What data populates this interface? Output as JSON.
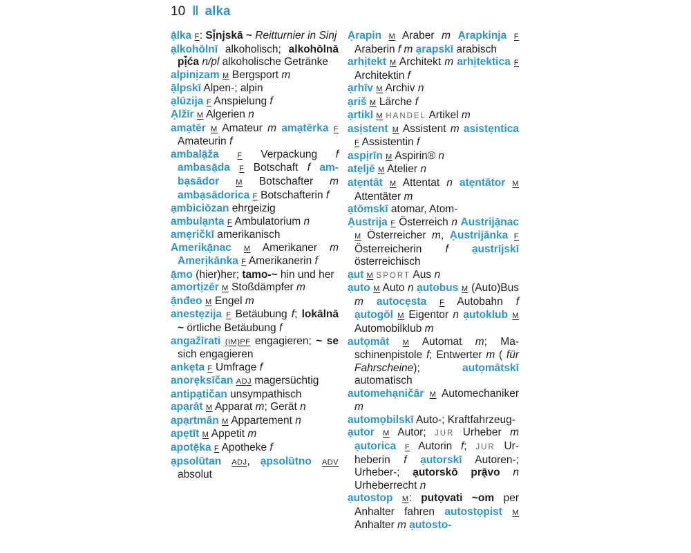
{
  "header": {
    "page_number": "10",
    "divider": "‖",
    "guide_word": "alka"
  },
  "accent_color": "#2d95c8",
  "columns": {
    "left": [
      [
        [
          "hw",
          "ạ̄lka "
        ],
        [
          "g",
          "F"
        ],
        [
          "t",
          ": "
        ],
        [
          "bd",
          "Sị̄njskā ~"
        ],
        [
          "t",
          " "
        ],
        [
          "it",
          "Reitturnier in Sinj"
        ]
      ],
      [
        [
          "hw",
          "ạlkohōlnī"
        ],
        [
          "t",
          " alkoholisch; "
        ],
        [
          "bd",
          "alko­hōlnā pị̄ća "
        ],
        [
          "it",
          "n/pl"
        ],
        [
          "t",
          " alkoholische Getränke"
        ]
      ],
      [
        [
          "hw",
          "alpinịzam "
        ],
        [
          "g",
          "M"
        ],
        [
          "t",
          " Bergsport "
        ],
        [
          "it",
          "m"
        ]
      ],
      [
        [
          "hw",
          "ạ̄lpskī"
        ],
        [
          "t",
          " Alpen-; alpin"
        ]
      ],
      [
        [
          "hw",
          "ạlūzija "
        ],
        [
          "g",
          "F"
        ],
        [
          "t",
          " Anspielung "
        ],
        [
          "it",
          "f"
        ]
      ],
      [
        [
          "hw",
          "Ạlžīr "
        ],
        [
          "g",
          "M"
        ],
        [
          "t",
          " Algerien "
        ],
        [
          "it",
          "n"
        ]
      ],
      [
        [
          "hw",
          "amạtēr "
        ],
        [
          "g",
          "M"
        ],
        [
          "t",
          " Amateur "
        ],
        [
          "it",
          "m"
        ],
        [
          "t",
          " "
        ],
        [
          "hw",
          "amạ­tērka "
        ],
        [
          "g",
          "F"
        ],
        [
          "t",
          " Amateurin "
        ],
        [
          "it",
          "f"
        ]
      ],
      [
        [
          "hw",
          "ambalạ̄ža "
        ],
        [
          "g",
          "F"
        ],
        [
          "t",
          " Verpackung "
        ],
        [
          "it",
          "f"
        ],
        [
          "t",
          " "
        ],
        [
          "hw",
          "ambasạ̄da "
        ],
        [
          "g",
          "F"
        ],
        [
          "t",
          " Botschaft "
        ],
        [
          "it",
          "f"
        ],
        [
          "t",
          " "
        ],
        [
          "hw",
          "am­bạsādor "
        ],
        [
          "g",
          "M"
        ],
        [
          "t",
          " Botschafter "
        ],
        [
          "it",
          "m"
        ],
        [
          "t",
          " "
        ],
        [
          "hw",
          "ambạsādorica "
        ],
        [
          "g",
          "F"
        ],
        [
          "t",
          " Botschafte­rin "
        ],
        [
          "it",
          "f"
        ]
      ],
      [
        [
          "hw",
          "ạmbiciōzan"
        ],
        [
          "t",
          " ehrgeizig"
        ]
      ],
      [
        [
          "hw",
          "ambulạnta "
        ],
        [
          "g",
          "F"
        ],
        [
          "t",
          " Ambulatorium "
        ],
        [
          "it",
          "n"
        ]
      ],
      [
        [
          "hw",
          "amẹričkī"
        ],
        [
          "t",
          " amerikanisch"
        ]
      ],
      [
        [
          "hw",
          "Amerikạ̄nac "
        ],
        [
          "g",
          "M"
        ],
        [
          "t",
          " Amerikaner "
        ],
        [
          "it",
          "m"
        ],
        [
          "t",
          " "
        ],
        [
          "hw",
          "Amerịkānka "
        ],
        [
          "g",
          "F"
        ],
        [
          "t",
          " Amerikane­rin "
        ],
        [
          "it",
          "f"
        ]
      ],
      [
        [
          "hw",
          "ạ̄mo"
        ],
        [
          "t",
          " (hier)her; "
        ],
        [
          "bd",
          "tamo-~"
        ],
        [
          "t",
          " hin und her"
        ]
      ],
      [
        [
          "hw",
          "amortịzēr "
        ],
        [
          "g",
          "M"
        ],
        [
          "t",
          " Stoßdämpfer "
        ],
        [
          "it",
          "m"
        ]
      ],
      [
        [
          "hw",
          "ạ̄nđeo "
        ],
        [
          "g",
          "M"
        ],
        [
          "t",
          " Engel "
        ],
        [
          "it",
          "m"
        ]
      ],
      [
        [
          "hw",
          "anestẹzija "
        ],
        [
          "g",
          "F"
        ],
        [
          "t",
          " Betäubung "
        ],
        [
          "it",
          "f"
        ],
        [
          "t",
          "; "
        ],
        [
          "bd",
          "lo­kālnā ~"
        ],
        [
          "t",
          " örtliche Betäubung "
        ],
        [
          "it",
          "f"
        ]
      ],
      [
        [
          "hw",
          "angažīrati "
        ],
        [
          "g",
          "(IM)PF"
        ],
        [
          "t",
          " engagieren; "
        ],
        [
          "bd",
          "~ se"
        ],
        [
          "t",
          " sich engagieren"
        ]
      ],
      [
        [
          "hw",
          "ankẹta "
        ],
        [
          "g",
          "F"
        ],
        [
          "t",
          " Umfrage "
        ],
        [
          "it",
          "f"
        ]
      ],
      [
        [
          "hw",
          "anorẹksīčan "
        ],
        [
          "g",
          "ADJ"
        ],
        [
          "t",
          " magersüch­tig"
        ]
      ],
      [
        [
          "hw",
          "antipạtičan"
        ],
        [
          "t",
          " unsympathisch"
        ]
      ],
      [
        [
          "hw",
          "apạrāt "
        ],
        [
          "g",
          "M"
        ],
        [
          "t",
          " Apparat "
        ],
        [
          "it",
          "m"
        ],
        [
          "t",
          "; Gerät "
        ],
        [
          "it",
          "n"
        ]
      ],
      [
        [
          "hw",
          "apạrtmān "
        ],
        [
          "g",
          "M"
        ],
        [
          "t",
          " Appartement "
        ],
        [
          "it",
          "n"
        ]
      ],
      [
        [
          "hw",
          "apẹtīt "
        ],
        [
          "g",
          "M"
        ],
        [
          "t",
          " Appetit "
        ],
        [
          "it",
          "m"
        ]
      ],
      [
        [
          "hw",
          "apotẹ̄ka "
        ],
        [
          "g",
          "F"
        ],
        [
          "t",
          " Apotheke "
        ],
        [
          "it",
          "f"
        ]
      ],
      [
        [
          "hw",
          "ạpsolūtan "
        ],
        [
          "g",
          "ADJ"
        ],
        [
          "t",
          ", "
        ],
        [
          "hw",
          "ạpsolūtno "
        ],
        [
          "g",
          "ADV"
        ],
        [
          "t",
          " absolut"
        ]
      ]
    ],
    "right": [
      [
        [
          "hw",
          "Ạrapin "
        ],
        [
          "g",
          "M"
        ],
        [
          "t",
          " Araber "
        ],
        [
          "it",
          "m"
        ],
        [
          "t",
          " "
        ],
        [
          "hw",
          "Ạrapki­nja "
        ],
        [
          "g",
          "F"
        ],
        [
          "t",
          " Araberin "
        ],
        [
          "it",
          "f m"
        ],
        [
          "t",
          " "
        ],
        [
          "hw",
          "ạrapskī"
        ],
        [
          "t",
          " arabisch"
        ]
      ],
      [
        [
          "hw",
          "arhịtekt "
        ],
        [
          "g",
          "M"
        ],
        [
          "t",
          " Architekt "
        ],
        [
          "it",
          "m"
        ],
        [
          "t",
          " "
        ],
        [
          "hw",
          "arhị­tektica "
        ],
        [
          "g",
          "F"
        ],
        [
          "t",
          " Architektin "
        ],
        [
          "it",
          "f"
        ]
      ],
      [
        [
          "hw",
          "ạrhīv "
        ],
        [
          "g",
          "M"
        ],
        [
          "t",
          " Archiv "
        ],
        [
          "it",
          "n"
        ]
      ],
      [
        [
          "hw",
          "ạriš "
        ],
        [
          "g",
          "M"
        ],
        [
          "t",
          " Lärche "
        ],
        [
          "it",
          "f"
        ]
      ],
      [
        [
          "hw",
          "ạrtikl "
        ],
        [
          "g",
          "M"
        ],
        [
          "t",
          " "
        ],
        [
          "lb",
          "HANDEL"
        ],
        [
          "t",
          " Artikel "
        ],
        [
          "it",
          "m"
        ]
      ],
      [
        [
          "hw",
          "asịstent "
        ],
        [
          "g",
          "M"
        ],
        [
          "t",
          " Assistent "
        ],
        [
          "it",
          "m"
        ],
        [
          "t",
          " "
        ],
        [
          "hw",
          "asi­stẹntica "
        ],
        [
          "g",
          "F"
        ],
        [
          "t",
          " Assistentin "
        ],
        [
          "it",
          "f"
        ]
      ],
      [
        [
          "hw",
          "aspịrīn "
        ],
        [
          "g",
          "M"
        ],
        [
          "t",
          " Aspirin® "
        ],
        [
          "it",
          "n"
        ]
      ],
      [
        [
          "hw",
          "atẹljē "
        ],
        [
          "g",
          "M"
        ],
        [
          "t",
          " Atelier "
        ],
        [
          "it",
          "n"
        ]
      ],
      [
        [
          "hw",
          "atẹntāt "
        ],
        [
          "g",
          "M"
        ],
        [
          "t",
          " Attentat "
        ],
        [
          "it",
          "n"
        ],
        [
          "t",
          " "
        ],
        [
          "hw",
          "atẹntā­tor "
        ],
        [
          "g",
          "M"
        ],
        [
          "t",
          " Attentäter "
        ],
        [
          "it",
          "m"
        ]
      ],
      [
        [
          "hw",
          "ạtōmskī"
        ],
        [
          "t",
          " atomar, Atom-"
        ]
      ],
      [
        [
          "hw",
          "Ạustrija "
        ],
        [
          "g",
          "F"
        ],
        [
          "t",
          " Österreich "
        ],
        [
          "it",
          "n"
        ],
        [
          "t",
          " "
        ],
        [
          "hw",
          "Au­strijạ̄nac "
        ],
        [
          "g",
          "M"
        ],
        [
          "t",
          " Österreicher "
        ],
        [
          "it",
          "m"
        ],
        [
          "t",
          ", "
        ],
        [
          "hw",
          "Ạustrijānka "
        ],
        [
          "g",
          "F"
        ],
        [
          "t",
          " Österreicherin "
        ],
        [
          "it",
          "f"
        ],
        [
          "t",
          " "
        ],
        [
          "hw",
          "ạustrījskī"
        ],
        [
          "t",
          " österreichisch"
        ]
      ],
      [
        [
          "hw",
          "ạut "
        ],
        [
          "g",
          "M"
        ],
        [
          "t",
          " "
        ],
        [
          "lb",
          "SPORT"
        ],
        [
          "t",
          " Aus "
        ],
        [
          "it",
          "n"
        ]
      ],
      [
        [
          "hw",
          "ạuto "
        ],
        [
          "g",
          "M"
        ],
        [
          "t",
          " Auto "
        ],
        [
          "it",
          "n"
        ],
        [
          "t",
          " "
        ],
        [
          "hw",
          "ạutobus "
        ],
        [
          "g",
          "M"
        ],
        [
          "t",
          " (Auto)Bus "
        ],
        [
          "it",
          "m"
        ],
        [
          "t",
          " "
        ],
        [
          "hw",
          "autocẹsta "
        ],
        [
          "g",
          "F"
        ],
        [
          "t",
          " Au­tobahn "
        ],
        [
          "it",
          "f"
        ],
        [
          "t",
          " "
        ],
        [
          "hw",
          "ạutogōl "
        ],
        [
          "g",
          "M"
        ],
        [
          "t",
          " Eigentor "
        ],
        [
          "it",
          "n"
        ],
        [
          "t",
          " "
        ],
        [
          "hw",
          "ạutoklub "
        ],
        [
          "g",
          "M"
        ],
        [
          "t",
          " Automobilklub "
        ],
        [
          "it",
          "m"
        ]
      ],
      [
        [
          "hw",
          "autọmāt "
        ],
        [
          "g",
          "M"
        ],
        [
          "t",
          " Automat "
        ],
        [
          "it",
          "m"
        ],
        [
          "t",
          "; Ma­schinenpistole "
        ],
        [
          "it",
          "f"
        ],
        [
          "t",
          "; Entwerter "
        ],
        [
          "it",
          "m"
        ],
        [
          "t",
          " ( "
        ],
        [
          "it",
          "für Fahrscheine"
        ],
        [
          "t",
          "); "
        ],
        [
          "hw",
          "autọmāt­skī"
        ],
        [
          "t",
          " automatisch"
        ]
      ],
      [
        [
          "hw",
          "automehạničār "
        ],
        [
          "g",
          "M"
        ],
        [
          "t",
          " Autome­chaniker "
        ],
        [
          "it",
          "m"
        ]
      ],
      [
        [
          "hw",
          "automọbilskī"
        ],
        [
          "t",
          " Auto-; Kraft­fahrzeug-"
        ]
      ],
      [
        [
          "hw",
          "ạutor "
        ],
        [
          "g",
          "M"
        ],
        [
          "t",
          " Autor; "
        ],
        [
          "lb",
          "JUR"
        ],
        [
          "t",
          " Urheber "
        ],
        [
          "it",
          "m"
        ],
        [
          "t",
          " "
        ],
        [
          "hw",
          "ạutorica "
        ],
        [
          "g",
          "F"
        ],
        [
          "t",
          " Autorin "
        ],
        [
          "it",
          "f"
        ],
        [
          "t",
          "; "
        ],
        [
          "lb",
          "JUR"
        ],
        [
          "t",
          " Ur­heberin "
        ],
        [
          "it",
          "f"
        ],
        [
          "t",
          " "
        ],
        [
          "hw",
          "ạutorskī"
        ],
        [
          "t",
          " Autoren-; Urheber-; "
        ],
        [
          "bd",
          "ạutorskō prạ̄vo "
        ],
        [
          "it",
          "n"
        ],
        [
          "t",
          " Urheberrecht "
        ],
        [
          "it",
          "n"
        ]
      ],
      [
        [
          "hw",
          "ạutostop "
        ],
        [
          "g",
          "M"
        ],
        [
          "t",
          ": "
        ],
        [
          "bd",
          "putọvati ~om"
        ],
        [
          "t",
          " per Anhalter fahren "
        ],
        [
          "hw",
          "autostọ­pist "
        ],
        [
          "g",
          "M"
        ],
        [
          "t",
          " Anhalter "
        ],
        [
          "it",
          "m"
        ],
        [
          "t",
          " "
        ],
        [
          "hw",
          "ạutosto-"
        ]
      ]
    ]
  }
}
